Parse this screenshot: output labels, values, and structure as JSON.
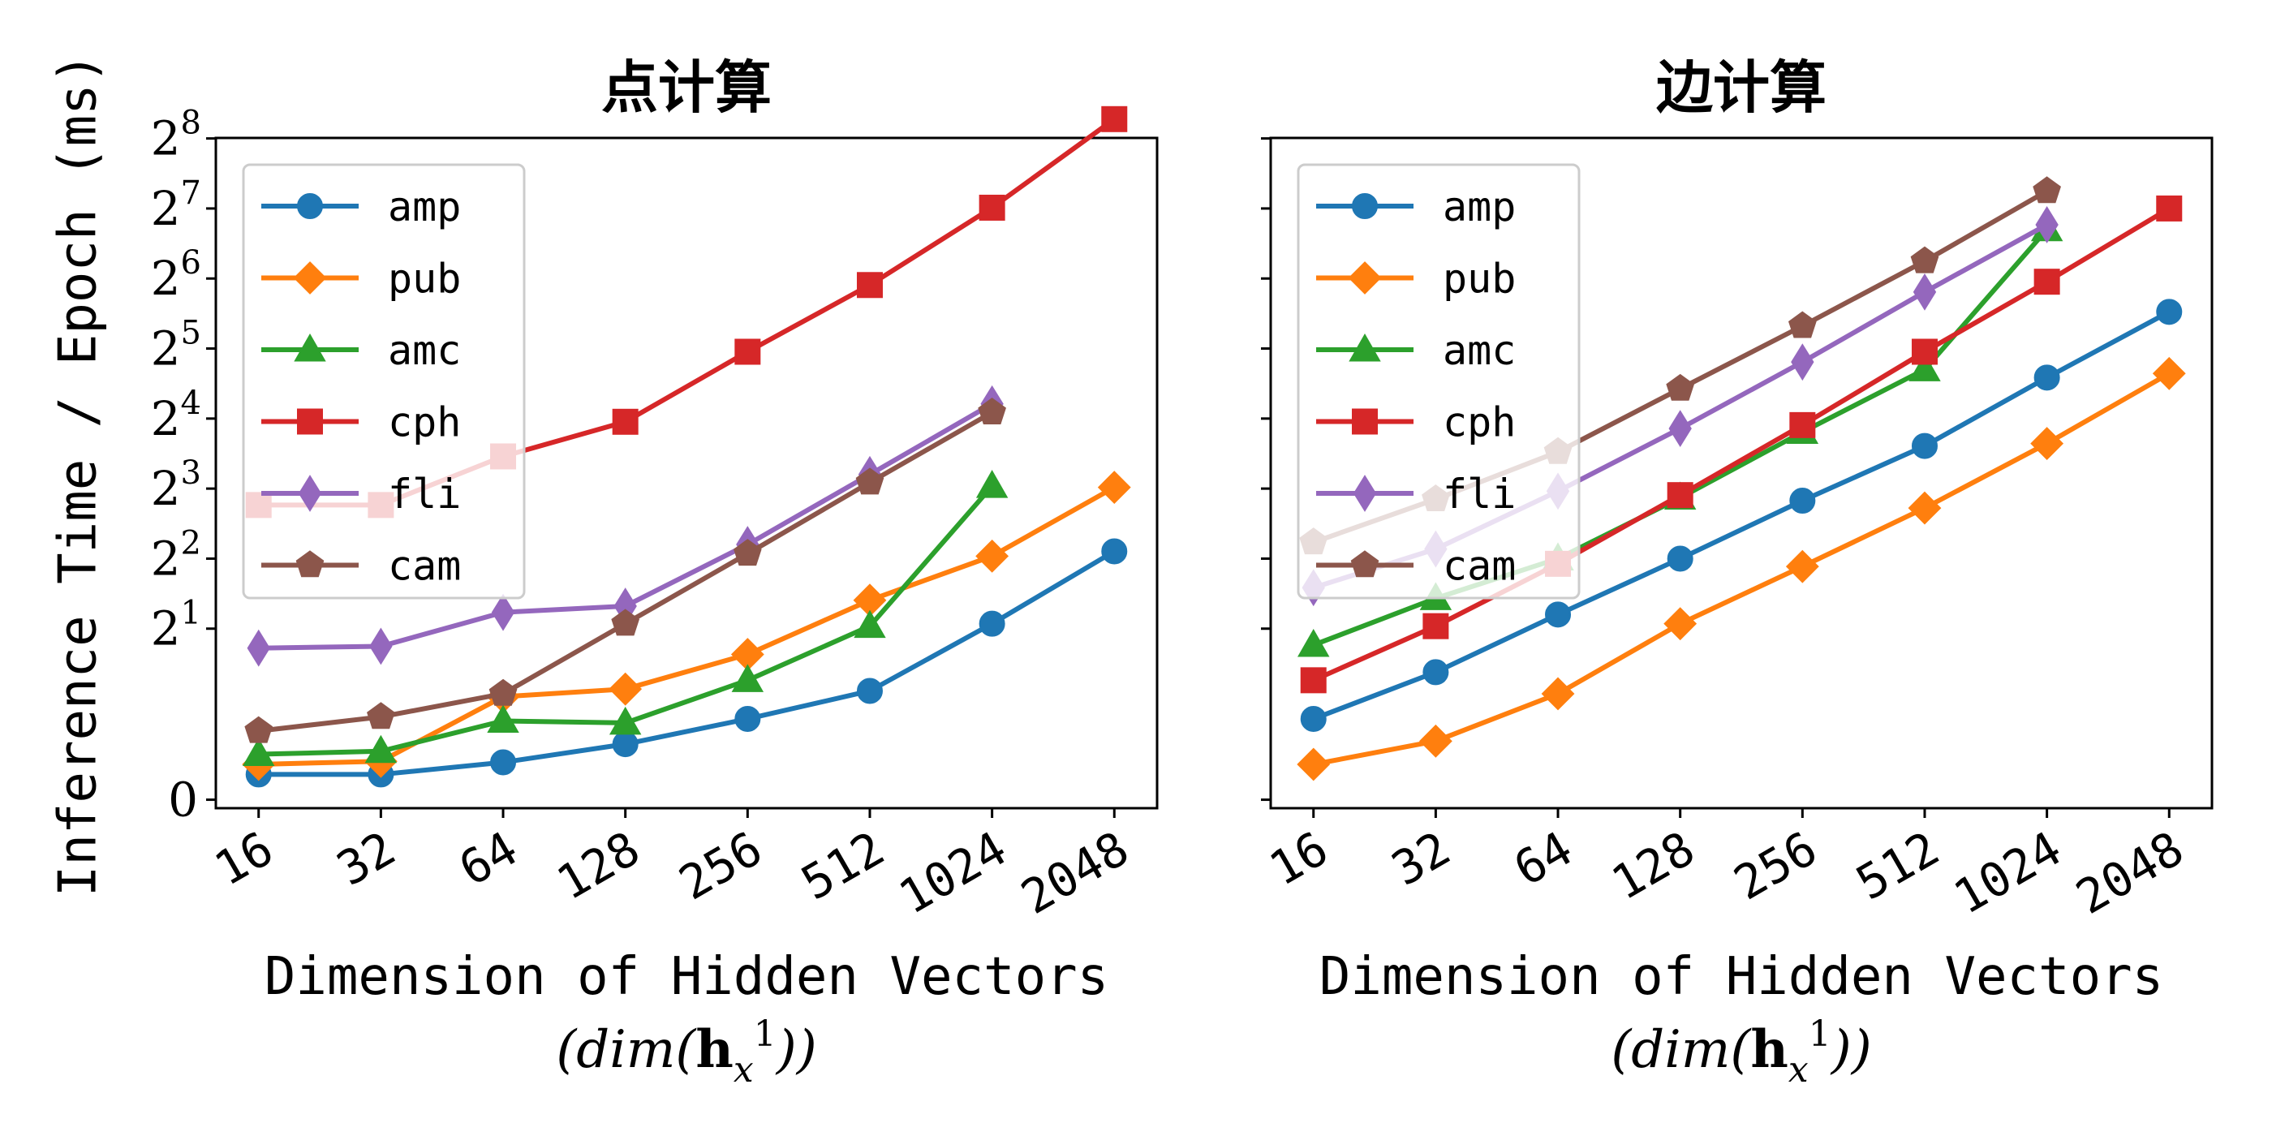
{
  "chart_data": [
    {
      "type": "line",
      "title": "点计算",
      "xlabel": "Dimension of Hidden Vectors",
      "xlabel_math": "(dim(h_x^1))",
      "ylabel": "Inference Time / Epoch (ms)",
      "y_scale": "symlog base 2",
      "categories": [
        "16",
        "32",
        "64",
        "128",
        "256",
        "512",
        "1024",
        "2048"
      ],
      "yticks": [
        "0",
        "2^1",
        "2^2",
        "2^3",
        "2^4",
        "2^5",
        "2^6",
        "2^7",
        "2^8"
      ],
      "legend_position": "upper-left",
      "series": [
        {
          "name": "amp",
          "color": "#1f77b4",
          "marker": "circle",
          "values": [
            0.25,
            0.25,
            0.37,
            0.55,
            0.8,
            1.08,
            2.1,
            4.3
          ]
        },
        {
          "name": "pub",
          "color": "#ff7f0e",
          "marker": "diamond",
          "values": [
            0.35,
            0.38,
            1.02,
            1.1,
            1.55,
            2.65,
            4.1,
            8.1
          ]
        },
        {
          "name": "amc",
          "color": "#2ca02c",
          "marker": "triangle",
          "values": [
            0.45,
            0.48,
            0.78,
            0.76,
            1.2,
            2.05,
            8.2,
            null
          ]
        },
        {
          "name": "cph",
          "color": "#d62728",
          "marker": "square",
          "values": [
            6.8,
            6.8,
            11.0,
            15.5,
            31.0,
            60.0,
            129.0,
            310.0
          ]
        },
        {
          "name": "fli",
          "color": "#9467bd",
          "marker": "thin-diamond",
          "values": [
            1.65,
            1.68,
            2.35,
            2.5,
            4.6,
            9.2,
            18.5,
            null
          ]
        },
        {
          "name": "cam",
          "color": "#8c564b",
          "marker": "pentagon",
          "values": [
            0.68,
            0.82,
            1.05,
            2.1,
            4.2,
            8.5,
            17.0,
            null
          ]
        }
      ]
    },
    {
      "type": "line",
      "title": "边计算",
      "xlabel": "Dimension of Hidden Vectors",
      "xlabel_math": "(dim(h_x^1))",
      "ylabel": "",
      "y_scale": "symlog base 2 (shared)",
      "categories": [
        "16",
        "32",
        "64",
        "128",
        "256",
        "512",
        "1024",
        "2048"
      ],
      "legend_position": "upper-left",
      "series": [
        {
          "name": "amp",
          "color": "#1f77b4",
          "marker": "circle",
          "values": [
            0.8,
            1.3,
            2.3,
            4.0,
            7.1,
            12.2,
            24.0,
            46.0
          ]
        },
        {
          "name": "pub",
          "color": "#ff7f0e",
          "marker": "diamond",
          "values": [
            0.35,
            0.58,
            1.05,
            2.1,
            3.7,
            6.6,
            12.5,
            25.0
          ]
        },
        {
          "name": "amc",
          "color": "#2ca02c",
          "marker": "triangle",
          "values": [
            1.7,
            2.7,
            4.0,
            7.3,
            14.0,
            26.0,
            104.0,
            null
          ]
        },
        {
          "name": "cph",
          "color": "#d62728",
          "marker": "square",
          "values": [
            1.2,
            2.05,
            3.8,
            7.5,
            15.0,
            31.0,
            62.0,
            128.0
          ]
        },
        {
          "name": "fli",
          "color": "#9467bd",
          "marker": "thin-diamond",
          "values": [
            3.0,
            4.4,
            7.8,
            14.5,
            28.0,
            56.0,
            109.0,
            null
          ]
        },
        {
          "name": "cam",
          "color": "#8c564b",
          "marker": "pentagon",
          "values": [
            4.7,
            7.2,
            11.5,
            21.5,
            40.0,
            76.0,
            152.0,
            null
          ]
        }
      ]
    }
  ]
}
